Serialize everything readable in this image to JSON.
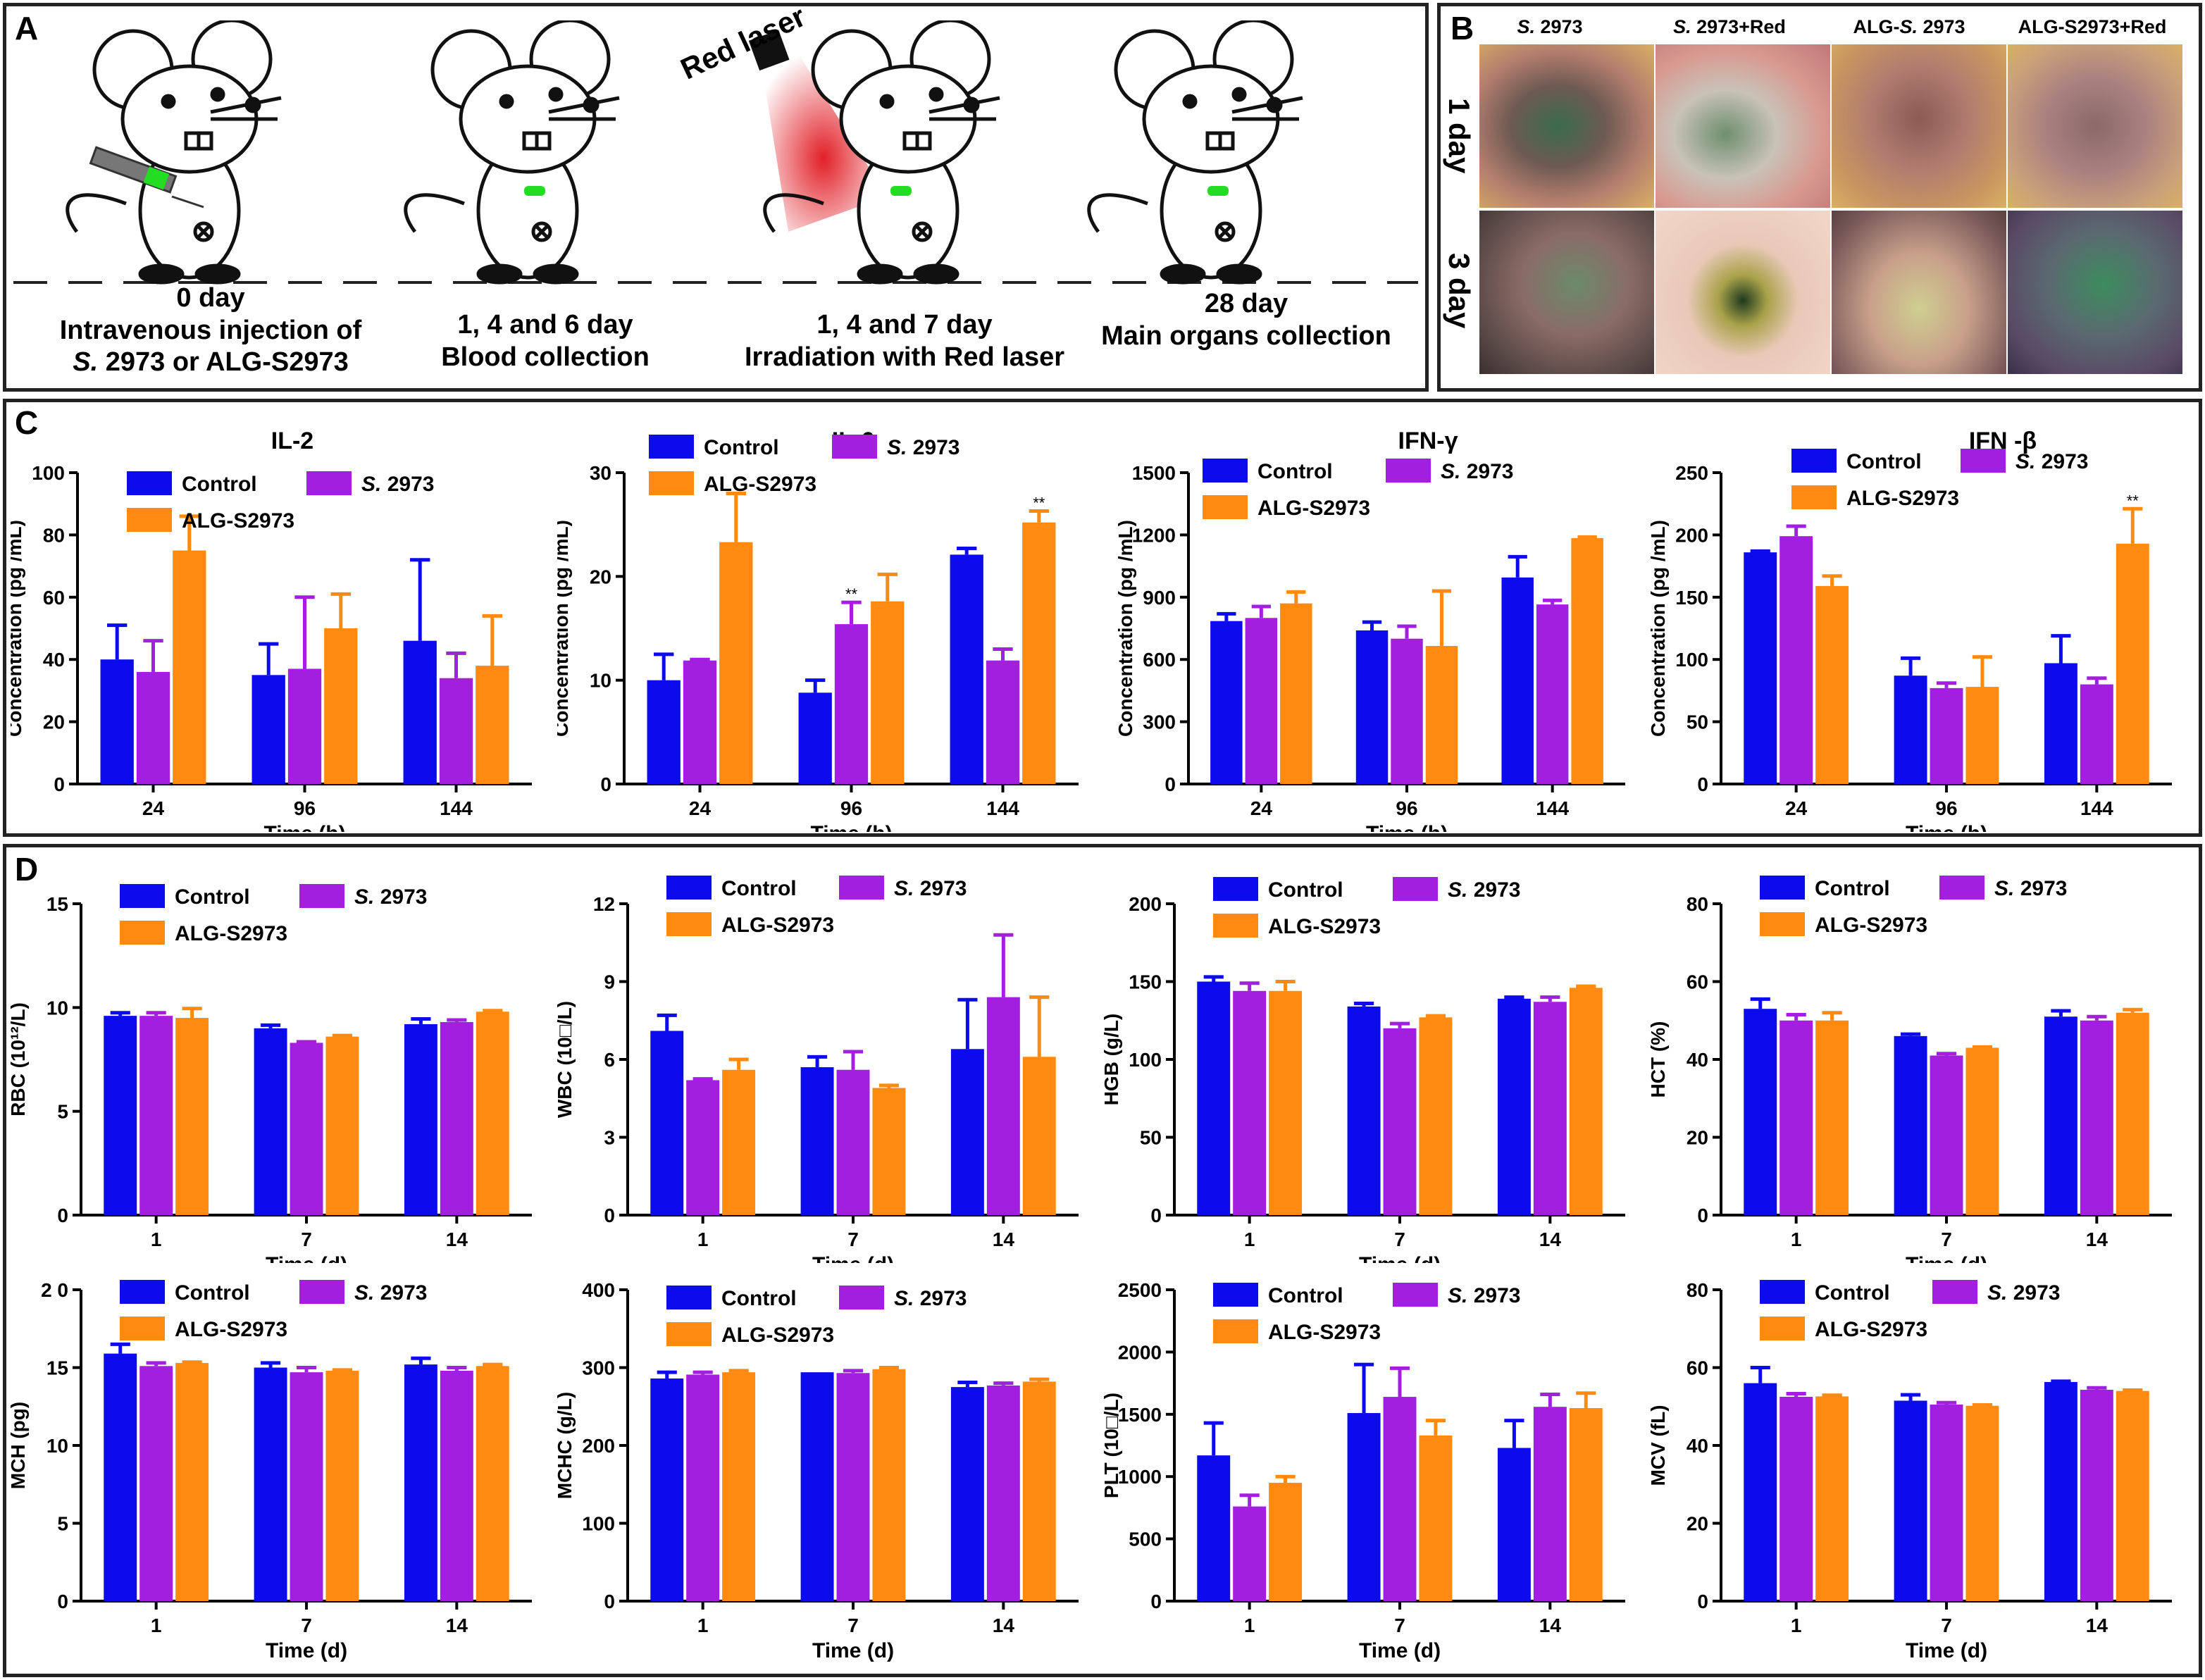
{
  "colors": {
    "control": "#0b0bec",
    "s2973": "#a31fe0",
    "alg_s2973": "#ff8a12",
    "axis": "#000000",
    "frame": "#222222",
    "laser": "#e0141c",
    "dot": "#22dd22"
  },
  "panelA": {
    "letter": "A",
    "laser_label": "Red laser",
    "steps": [
      {
        "line1": "0 day",
        "line2": "Intravenous injection of",
        "line3_italic": "S.",
        "line3_rest": " 2973 or ALG-S2973",
        "icon": "syringe-icon"
      },
      {
        "line1": "1, 4 and 6 day",
        "line2": "Blood collection",
        "icon": "mouse-icon"
      },
      {
        "line1": "1, 4 and 7 day",
        "line2": "Irradiation with Red laser",
        "icon": "laser-icon"
      },
      {
        "line1": "28 day",
        "line2": "Main organs collection",
        "icon": "mouse-icon"
      }
    ]
  },
  "panelB": {
    "letter": "B",
    "columns": [
      {
        "italic": "S.",
        "rest": " 2973"
      },
      {
        "italic": "S.",
        "rest": " 2973+Red"
      },
      {
        "italic": "",
        "rest": "ALG-",
        "italic2": "S.",
        "rest2": " 2973"
      },
      {
        "italic": "",
        "rest": "ALG-S2973+Red"
      }
    ],
    "rows": [
      "1 day",
      "3 day"
    ]
  },
  "panelC": {
    "letter": "C",
    "legend": {
      "control": "Control",
      "s2973_italic": "S.",
      "s2973_rest": " 2973",
      "alg": "ALG-S2973"
    },
    "xlabel": "Time (h)",
    "ylabel": "Concentration (pg /mL)"
  },
  "panelD": {
    "letter": "D",
    "legend": {
      "control": "Control",
      "s2973_italic": "S.",
      "s2973_rest": " 2973",
      "alg": "ALG-S2973"
    },
    "xlabel": "Time (d)"
  },
  "chart_data": [
    {
      "id": "il2",
      "type": "bar",
      "title": "IL-2",
      "ylabel": "Concentration (pg /mL)",
      "xlabel": "Time (h)",
      "categories": [
        "24",
        "96",
        "144"
      ],
      "ylim": [
        0,
        100
      ],
      "yticks": [
        0,
        20,
        40,
        60,
        80,
        100
      ],
      "series": [
        {
          "name": "Control",
          "values": [
            40,
            35,
            46
          ],
          "errors": [
            11,
            10,
            26
          ]
        },
        {
          "name": "S. 2973",
          "values": [
            36,
            37,
            34
          ],
          "errors": [
            10,
            23,
            8
          ]
        },
        {
          "name": "ALG-S2973",
          "values": [
            75,
            50,
            38
          ],
          "errors": [
            11,
            11,
            16
          ]
        }
      ],
      "annotations": []
    },
    {
      "id": "il6",
      "type": "bar",
      "title": "IL-6",
      "ylabel": "Concentration (pg /mL)",
      "xlabel": "Time (h)",
      "categories": [
        "24",
        "96",
        "144"
      ],
      "ylim": [
        0,
        30
      ],
      "yticks": [
        0,
        10,
        20,
        30
      ],
      "series": [
        {
          "name": "Control",
          "values": [
            10,
            8.8,
            22.1
          ],
          "errors": [
            2.5,
            1.2,
            0.6
          ]
        },
        {
          "name": "S. 2973",
          "values": [
            11.9,
            15.4,
            11.9
          ],
          "errors": [
            0.1,
            2.1,
            1.1
          ]
        },
        {
          "name": "ALG-S2973",
          "values": [
            23.3,
            17.6,
            25.2
          ],
          "errors": [
            4.7,
            2.6,
            1.1
          ]
        }
      ],
      "annotations": [
        {
          "series": 1,
          "category": 1,
          "text": "**"
        },
        {
          "series": 2,
          "category": 2,
          "text": "**"
        }
      ]
    },
    {
      "id": "ifng",
      "type": "bar",
      "title": "IFN-γ",
      "ylabel": "Concentration (pg /mL)",
      "xlabel": "Time (h)",
      "categories": [
        "24",
        "96",
        "144"
      ],
      "ylim": [
        0,
        1500
      ],
      "yticks": [
        0,
        300,
        600,
        900,
        1200,
        1500
      ],
      "series": [
        {
          "name": "Control",
          "values": [
            785,
            740,
            995
          ],
          "errors": [
            35,
            40,
            100
          ]
        },
        {
          "name": "S. 2973",
          "values": [
            800,
            700,
            865
          ],
          "errors": [
            55,
            60,
            20
          ]
        },
        {
          "name": "ALG-S2973",
          "values": [
            870,
            665,
            1185
          ],
          "errors": [
            55,
            265,
            5
          ]
        }
      ],
      "annotations": []
    },
    {
      "id": "ifnb",
      "type": "bar",
      "title": "IFN -β",
      "ylabel": "Concentration (pg /mL)",
      "xlabel": "Time (h)",
      "categories": [
        "24",
        "96",
        "144"
      ],
      "ylim": [
        0,
        250
      ],
      "yticks": [
        0,
        50,
        100,
        150,
        200,
        250
      ],
      "series": [
        {
          "name": "Control",
          "values": [
            186,
            87,
            97
          ],
          "errors": [
            1,
            14,
            22
          ]
        },
        {
          "name": "S. 2973",
          "values": [
            199,
            77,
            80
          ],
          "errors": [
            8,
            4,
            5
          ]
        },
        {
          "name": "ALG-S2973",
          "values": [
            159,
            78,
            193
          ],
          "errors": [
            8,
            24,
            28
          ]
        }
      ],
      "annotations": [
        {
          "series": 2,
          "category": 2,
          "text": "**"
        }
      ]
    },
    {
      "id": "rbc",
      "type": "bar",
      "title": "",
      "ylabel": "RBC (10¹²/L)",
      "xlabel": "Time (d)",
      "categories": [
        "1",
        "7",
        "14"
      ],
      "ylim": [
        0,
        15
      ],
      "yticks": [
        0,
        5,
        10,
        15
      ],
      "series": [
        {
          "name": "Control",
          "values": [
            9.6,
            9.0,
            9.2
          ],
          "errors": [
            0.15,
            0.15,
            0.25
          ]
        },
        {
          "name": "S. 2973",
          "values": [
            9.6,
            8.3,
            9.3
          ],
          "errors": [
            0.15,
            0.05,
            0.1
          ]
        },
        {
          "name": "ALG-S2973",
          "values": [
            9.5,
            8.6,
            9.8
          ],
          "errors": [
            0.45,
            0.05,
            0.05
          ]
        }
      ],
      "annotations": []
    },
    {
      "id": "wbc",
      "type": "bar",
      "title": "",
      "ylabel": "WBC (10□/L)",
      "xlabel": "Time (d)",
      "categories": [
        "1",
        "7",
        "14"
      ],
      "ylim": [
        0,
        12
      ],
      "yticks": [
        0,
        3,
        6,
        9,
        12
      ],
      "series": [
        {
          "name": "Control",
          "values": [
            7.1,
            5.7,
            6.4
          ],
          "errors": [
            0.6,
            0.4,
            1.9
          ]
        },
        {
          "name": "S. 2973",
          "values": [
            5.2,
            5.6,
            8.4
          ],
          "errors": [
            0.05,
            0.7,
            2.4
          ]
        },
        {
          "name": "ALG-S2973",
          "values": [
            5.6,
            4.9,
            6.1
          ],
          "errors": [
            0.4,
            0.1,
            2.3
          ]
        }
      ],
      "annotations": []
    },
    {
      "id": "hgb",
      "type": "bar",
      "title": "",
      "ylabel": "HGB (g/L)",
      "xlabel": "Time (d)",
      "categories": [
        "1",
        "7",
        "14"
      ],
      "ylim": [
        0,
        200
      ],
      "yticks": [
        0,
        50,
        100,
        150,
        200
      ],
      "series": [
        {
          "name": "Control",
          "values": [
            150,
            134,
            139
          ],
          "errors": [
            3,
            2,
            1
          ]
        },
        {
          "name": "S. 2973",
          "values": [
            144,
            120,
            137
          ],
          "errors": [
            5,
            3,
            3
          ]
        },
        {
          "name": "ALG-S2973",
          "values": [
            144,
            127,
            146
          ],
          "errors": [
            6,
            1,
            1
          ]
        }
      ],
      "annotations": []
    },
    {
      "id": "hct",
      "type": "bar",
      "title": "",
      "ylabel": "HCT (%)",
      "xlabel": "Time (d)",
      "categories": [
        "1",
        "7",
        "14"
      ],
      "ylim": [
        0,
        80
      ],
      "yticks": [
        0,
        20,
        40,
        60,
        80
      ],
      "series": [
        {
          "name": "Control",
          "values": [
            53,
            46,
            51
          ],
          "errors": [
            2.5,
            0.5,
            1.5
          ]
        },
        {
          "name": "S. 2973",
          "values": [
            50,
            41,
            50
          ],
          "errors": [
            1.5,
            0.5,
            1
          ]
        },
        {
          "name": "ALG-S2973",
          "values": [
            50,
            43,
            52
          ],
          "errors": [
            2,
            0.2,
            0.8
          ]
        }
      ],
      "annotations": []
    },
    {
      "id": "mch",
      "type": "bar",
      "title": "",
      "ylabel": "MCH (pg)",
      "xlabel": "Time (d)",
      "categories": [
        "1",
        "7",
        "14"
      ],
      "ylim": [
        0,
        20
      ],
      "yticks": [
        0,
        5,
        10,
        15,
        20
      ],
      "ytick_labels": [
        "0",
        "5",
        "10",
        "15",
        "2 0"
      ],
      "series": [
        {
          "name": "Control",
          "values": [
            15.9,
            15.0,
            15.2
          ],
          "errors": [
            0.6,
            0.3,
            0.4
          ]
        },
        {
          "name": "S. 2973",
          "values": [
            15.1,
            14.7,
            14.8
          ],
          "errors": [
            0.2,
            0.3,
            0.2
          ]
        },
        {
          "name": "ALG-S2973",
          "values": [
            15.3,
            14.8,
            15.1
          ],
          "errors": [
            0.05,
            0.05,
            0.1
          ]
        }
      ],
      "annotations": []
    },
    {
      "id": "mchc",
      "type": "bar",
      "title": "",
      "ylabel": "MCHC (g/L)",
      "xlabel": "Time (d)",
      "categories": [
        "1",
        "7",
        "14"
      ],
      "ylim": [
        0,
        400
      ],
      "yticks": [
        0,
        100,
        200,
        300,
        400
      ],
      "series": [
        {
          "name": "Control",
          "values": [
            286,
            294,
            275
          ],
          "errors": [
            8,
            0,
            6
          ]
        },
        {
          "name": "S. 2973",
          "values": [
            291,
            293,
            277
          ],
          "errors": [
            3,
            3,
            3
          ]
        },
        {
          "name": "ALG-S2973",
          "values": [
            294,
            298,
            282
          ],
          "errors": [
            2,
            2,
            3
          ]
        }
      ],
      "annotations": []
    },
    {
      "id": "plt",
      "type": "bar",
      "title": "",
      "ylabel": "PLT (10□/L)",
      "xlabel": "Time (d)",
      "categories": [
        "1",
        "7",
        "14"
      ],
      "ylim": [
        0,
        2500
      ],
      "yticks": [
        0,
        500,
        1000,
        1500,
        2000,
        2500
      ],
      "series": [
        {
          "name": "Control",
          "values": [
            1170,
            1510,
            1230
          ],
          "errors": [
            260,
            390,
            220
          ]
        },
        {
          "name": "S. 2973",
          "values": [
            760,
            1640,
            1560
          ],
          "errors": [
            90,
            230,
            100
          ]
        },
        {
          "name": "ALG-S2973",
          "values": [
            950,
            1330,
            1550
          ],
          "errors": [
            50,
            120,
            120
          ]
        }
      ],
      "annotations": []
    },
    {
      "id": "mcv",
      "type": "bar",
      "title": "",
      "ylabel": "MCV (fL)",
      "xlabel": "Time (d)",
      "categories": [
        "1",
        "7",
        "14"
      ],
      "ylim": [
        0,
        80
      ],
      "yticks": [
        0,
        20,
        40,
        60,
        80
      ],
      "series": [
        {
          "name": "Control",
          "values": [
            56,
            51.5,
            56.3
          ],
          "errors": [
            4,
            1.5,
            0.2
          ]
        },
        {
          "name": "S. 2973",
          "values": [
            52.5,
            50.5,
            54.3
          ],
          "errors": [
            0.8,
            0.5,
            0.5
          ]
        },
        {
          "name": "ALG-S2973",
          "values": [
            52.6,
            50.2,
            54
          ],
          "errors": [
            0.3,
            0.2,
            0.2
          ]
        }
      ],
      "annotations": []
    }
  ]
}
